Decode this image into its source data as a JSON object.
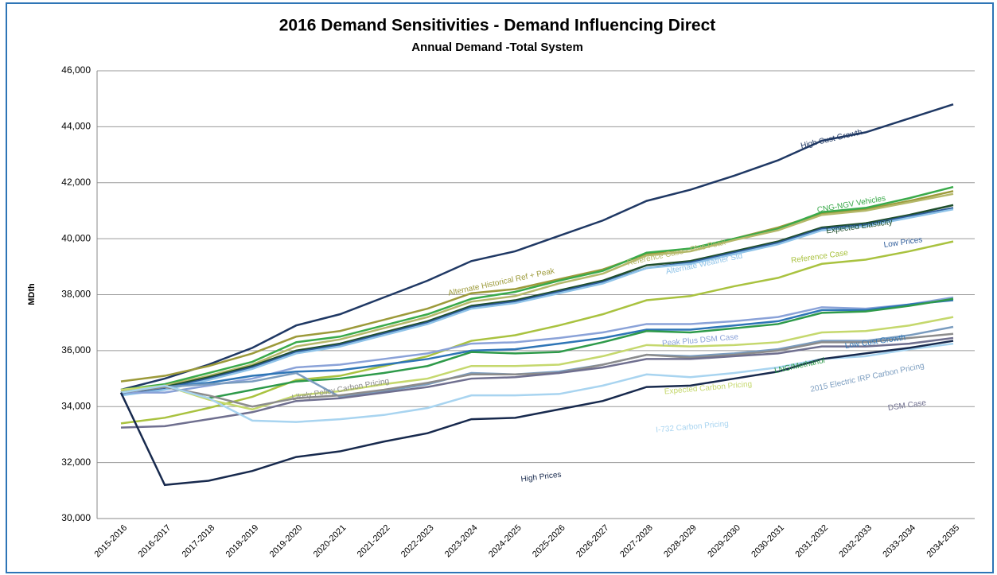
{
  "chart_data": {
    "type": "line",
    "title": "2016 Demand  Sensitivities - Demand Influencing Direct",
    "subtitle": "Annual Demand -Total System",
    "y_label": "MDth",
    "categories": [
      "2015-2016",
      "2016-2017",
      "2017-2018",
      "2018-2019",
      "2019-2020",
      "2020-2021",
      "2021-2022",
      "2022-2023",
      "2023-2024",
      "2024-2025",
      "2025-2026",
      "2026-2027",
      "2027-2028",
      "2028-2029",
      "2029-2030",
      "2030-2031",
      "2031-2032",
      "2032-2033",
      "2033-2034",
      "2034-2035"
    ],
    "ylim": [
      30000,
      46000
    ],
    "yticks": [
      {
        "value": 30000,
        "label": "30,000"
      },
      {
        "value": 32000,
        "label": "32,000"
      },
      {
        "value": 34000,
        "label": "34,000"
      },
      {
        "value": 36000,
        "label": "36,000"
      },
      {
        "value": 38000,
        "label": "38,000"
      },
      {
        "value": 40000,
        "label": "40,000"
      },
      {
        "value": 42000,
        "label": "42,000"
      },
      {
        "value": 44000,
        "label": "44,000"
      },
      {
        "value": 46000,
        "label": "46,000"
      }
    ],
    "grid": true,
    "series": [
      {
        "name": "High Cust Growth",
        "color": "#1f3864",
        "values": [
          34600,
          35000,
          35500,
          36100,
          36900,
          37300,
          37900,
          38500,
          39200,
          39550,
          40100,
          40650,
          41350,
          41750,
          42250,
          42800,
          43500,
          43800,
          44300,
          44800
        ]
      },
      {
        "name": "Alternate Historical Ref + Peak",
        "color": "#9c9a3a",
        "values": [
          34900,
          35100,
          35450,
          35900,
          36500,
          36700,
          37100,
          37500,
          38050,
          38200,
          38550,
          38900,
          39450,
          39650,
          40000,
          40400,
          40900,
          41050,
          41350,
          41700
        ]
      },
      {
        "name": "CNG-NGV Vehicles",
        "color": "#3aaa4a",
        "values": [
          34600,
          34800,
          35200,
          35600,
          36300,
          36500,
          36900,
          37300,
          37850,
          38100,
          38500,
          38850,
          39500,
          39650,
          40000,
          40350,
          40950,
          41100,
          41450,
          41850
        ]
      },
      {
        "name": "Reference Case - Plus Peak",
        "color": "#b5b86a",
        "values": [
          34550,
          34750,
          35100,
          35500,
          36150,
          36400,
          36800,
          37200,
          37750,
          37950,
          38400,
          38750,
          39400,
          39550,
          39950,
          40300,
          40850,
          41000,
          41300,
          41600
        ]
      },
      {
        "name": "Expected Elasticity",
        "color": "#1e4d2b",
        "values": [
          34500,
          34700,
          35050,
          35450,
          36000,
          36250,
          36650,
          37050,
          37600,
          37800,
          38150,
          38500,
          39050,
          39200,
          39550,
          39900,
          40400,
          40550,
          40850,
          41200
        ]
      },
      {
        "name": "Low Prices",
        "color": "#2e5c9a",
        "values": [
          34450,
          34650,
          35000,
          35400,
          35950,
          36200,
          36600,
          37000,
          37550,
          37750,
          38100,
          38450,
          38950,
          39150,
          39500,
          39850,
          40350,
          40500,
          40800,
          41100
        ]
      },
      {
        "name": "Alternate Weather Std",
        "color": "#8fc3e8",
        "values": [
          34400,
          34600,
          34950,
          35350,
          35900,
          36150,
          36550,
          36950,
          37500,
          37700,
          38050,
          38400,
          38950,
          39100,
          39450,
          39800,
          40300,
          40450,
          40750,
          41050
        ]
      },
      {
        "name": "Reference Case",
        "color": "#a9c23f",
        "values": [
          33400,
          33600,
          33950,
          34350,
          34950,
          35100,
          35450,
          35800,
          36350,
          36550,
          36900,
          37300,
          37800,
          37950,
          38300,
          38600,
          39100,
          39250,
          39550,
          39900
        ]
      },
      {
        "name": "Peak Plus DSM Case",
        "color": "#8aa2d8",
        "values": [
          34500,
          34500,
          34750,
          35000,
          35400,
          35500,
          35700,
          35900,
          36250,
          36300,
          36450,
          36650,
          36950,
          36950,
          37050,
          37200,
          37550,
          37500,
          37650,
          37900
        ]
      },
      {
        "name": "Low Cust Growth",
        "color": "#2e75b6",
        "values": [
          34500,
          34700,
          34850,
          35100,
          35250,
          35300,
          35500,
          35700,
          36000,
          36050,
          36250,
          36450,
          36750,
          36750,
          36900,
          37050,
          37450,
          37450,
          37650,
          37800
        ]
      },
      {
        "name": "LNG/Methanol",
        "color": "#2e9a4a",
        "values": [
          34500,
          34750,
          34300,
          34600,
          34900,
          35000,
          35200,
          35450,
          35950,
          35900,
          35950,
          36300,
          36700,
          36650,
          36800,
          36950,
          37350,
          37400,
          37600,
          37850
        ]
      },
      {
        "name": "Expected Carbon Pricing",
        "color": "#c5d86d",
        "values": [
          34600,
          34750,
          34250,
          33900,
          34400,
          34550,
          34800,
          35000,
          35450,
          35450,
          35500,
          35800,
          36200,
          36150,
          36200,
          36300,
          36650,
          36700,
          36900,
          37200
        ]
      },
      {
        "name": "2015 Electric IRP Carbon Pricing",
        "color": "#7a9cbf",
        "values": [
          34500,
          34700,
          34800,
          34900,
          35200,
          34350,
          34550,
          34800,
          35200,
          35150,
          35250,
          35500,
          35850,
          35800,
          35900,
          36050,
          36350,
          36350,
          36550,
          36850
        ]
      },
      {
        "name": "Likely Policy Carbon Pricing",
        "color": "#8c8c8c",
        "values": [
          34500,
          34700,
          34400,
          34000,
          34300,
          34400,
          34600,
          34850,
          35150,
          35150,
          35200,
          35500,
          35850,
          35750,
          35850,
          36000,
          36300,
          36300,
          36450,
          36600
        ]
      },
      {
        "name": "DSM Case",
        "color": "#6f6f8f",
        "values": [
          33250,
          33300,
          33550,
          33800,
          34200,
          34300,
          34500,
          34700,
          35000,
          35050,
          35200,
          35400,
          35700,
          35700,
          35800,
          35900,
          36150,
          36150,
          36250,
          36450
        ]
      },
      {
        "name": "I-732 Carbon Pricing",
        "color": "#a8d4f0",
        "values": [
          34500,
          34750,
          34300,
          33500,
          33450,
          33550,
          33700,
          33950,
          34400,
          34400,
          34450,
          34750,
          35150,
          35050,
          35200,
          35400,
          35700,
          35800,
          36050,
          36250
        ]
      },
      {
        "name": "High Prices",
        "color": "#17294d",
        "values": [
          34500,
          31200,
          31350,
          31700,
          32200,
          32400,
          32750,
          33050,
          33550,
          33600,
          33900,
          34200,
          34700,
          34750,
          35000,
          35250,
          35700,
          35900,
          36100,
          36350
        ]
      }
    ]
  }
}
